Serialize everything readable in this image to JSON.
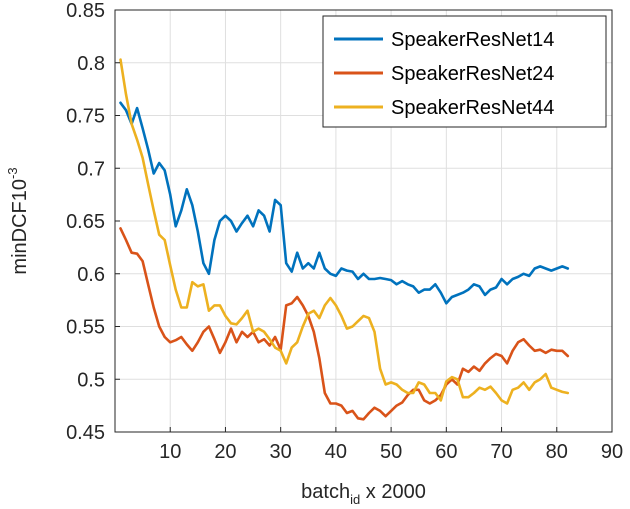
{
  "chart_data": {
    "type": "line",
    "xlabel": {
      "main": "batch",
      "sub": "id",
      "suffix": " x 2000"
    },
    "ylabel": {
      "main": "minDCF10",
      "sup": "-3"
    },
    "xlim": [
      0,
      90
    ],
    "ylim": [
      0.45,
      0.85
    ],
    "xticks": [
      10,
      20,
      30,
      40,
      50,
      60,
      70,
      80,
      90
    ],
    "yticks": [
      0.45,
      0.5,
      0.55,
      0.6,
      0.65,
      0.7,
      0.75,
      0.8,
      0.85
    ],
    "ytick_labels": [
      "0.45",
      "0.5",
      "0.55",
      "0.6",
      "0.65",
      "0.7",
      "0.75",
      "0.8",
      "0.85"
    ],
    "grid": true,
    "legend": "top-right",
    "x": [
      1,
      2,
      3,
      4,
      5,
      6,
      7,
      8,
      9,
      10,
      11,
      12,
      13,
      14,
      15,
      16,
      17,
      18,
      19,
      20,
      21,
      22,
      23,
      24,
      25,
      26,
      27,
      28,
      29,
      30,
      31,
      32,
      33,
      34,
      35,
      36,
      37,
      38,
      39,
      40,
      41,
      42,
      43,
      44,
      45,
      46,
      47,
      48,
      49,
      50,
      51,
      52,
      53,
      54,
      55,
      56,
      57,
      58,
      59,
      60,
      61,
      62,
      63,
      64,
      65,
      66,
      67,
      68,
      69,
      70,
      71,
      72,
      73,
      74,
      75,
      76,
      77,
      78,
      79,
      80,
      81,
      82
    ],
    "series": [
      {
        "name": "SpeakerResNet14",
        "color": "#0072BD",
        "values": [
          0.762,
          0.755,
          0.742,
          0.757,
          0.738,
          0.718,
          0.695,
          0.705,
          0.698,
          0.675,
          0.645,
          0.66,
          0.68,
          0.665,
          0.64,
          0.61,
          0.6,
          0.632,
          0.65,
          0.655,
          0.65,
          0.64,
          0.648,
          0.655,
          0.645,
          0.66,
          0.655,
          0.64,
          0.67,
          0.665,
          0.61,
          0.602,
          0.62,
          0.605,
          0.61,
          0.605,
          0.62,
          0.605,
          0.6,
          0.598,
          0.605,
          0.603,
          0.602,
          0.595,
          0.6,
          0.595,
          0.595,
          0.596,
          0.595,
          0.594,
          0.59,
          0.593,
          0.59,
          0.588,
          0.582,
          0.585,
          0.585,
          0.59,
          0.582,
          0.572,
          0.578,
          0.58,
          0.582,
          0.585,
          0.59,
          0.588,
          0.58,
          0.585,
          0.587,
          0.595,
          0.59,
          0.595,
          0.597,
          0.6,
          0.598,
          0.605,
          0.607,
          0.605,
          0.603,
          0.605,
          0.607,
          0.605
        ]
      },
      {
        "name": "SpeakerResNet24",
        "color": "#D95319",
        "values": [
          0.643,
          0.632,
          0.62,
          0.619,
          0.612,
          0.59,
          0.568,
          0.55,
          0.54,
          0.535,
          0.537,
          0.54,
          0.533,
          0.527,
          0.535,
          0.545,
          0.55,
          0.538,
          0.525,
          0.535,
          0.548,
          0.535,
          0.545,
          0.54,
          0.545,
          0.535,
          0.538,
          0.532,
          0.54,
          0.528,
          0.57,
          0.572,
          0.578,
          0.57,
          0.56,
          0.545,
          0.52,
          0.487,
          0.477,
          0.477,
          0.475,
          0.468,
          0.47,
          0.463,
          0.462,
          0.468,
          0.473,
          0.47,
          0.465,
          0.47,
          0.475,
          0.478,
          0.485,
          0.49,
          0.49,
          0.48,
          0.477,
          0.48,
          0.485,
          0.495,
          0.5,
          0.495,
          0.51,
          0.507,
          0.512,
          0.508,
          0.515,
          0.52,
          0.524,
          0.522,
          0.515,
          0.527,
          0.535,
          0.538,
          0.532,
          0.527,
          0.528,
          0.525,
          0.528,
          0.527,
          0.527,
          0.522
        ]
      },
      {
        "name": "SpeakerResNet44",
        "color": "#EDB120",
        "values": [
          0.803,
          0.77,
          0.742,
          0.727,
          0.71,
          0.685,
          0.66,
          0.637,
          0.632,
          0.608,
          0.585,
          0.568,
          0.568,
          0.592,
          0.588,
          0.59,
          0.565,
          0.57,
          0.57,
          0.56,
          0.553,
          0.552,
          0.558,
          0.565,
          0.545,
          0.548,
          0.545,
          0.538,
          0.53,
          0.527,
          0.515,
          0.53,
          0.535,
          0.55,
          0.562,
          0.565,
          0.558,
          0.57,
          0.577,
          0.57,
          0.56,
          0.548,
          0.55,
          0.555,
          0.56,
          0.558,
          0.545,
          0.51,
          0.495,
          0.497,
          0.495,
          0.49,
          0.487,
          0.487,
          0.497,
          0.495,
          0.487,
          0.487,
          0.48,
          0.498,
          0.502,
          0.5,
          0.483,
          0.483,
          0.487,
          0.492,
          0.49,
          0.493,
          0.487,
          0.48,
          0.477,
          0.49,
          0.492,
          0.497,
          0.49,
          0.497,
          0.5,
          0.505,
          0.492,
          0.49,
          0.488,
          0.487
        ]
      }
    ]
  }
}
